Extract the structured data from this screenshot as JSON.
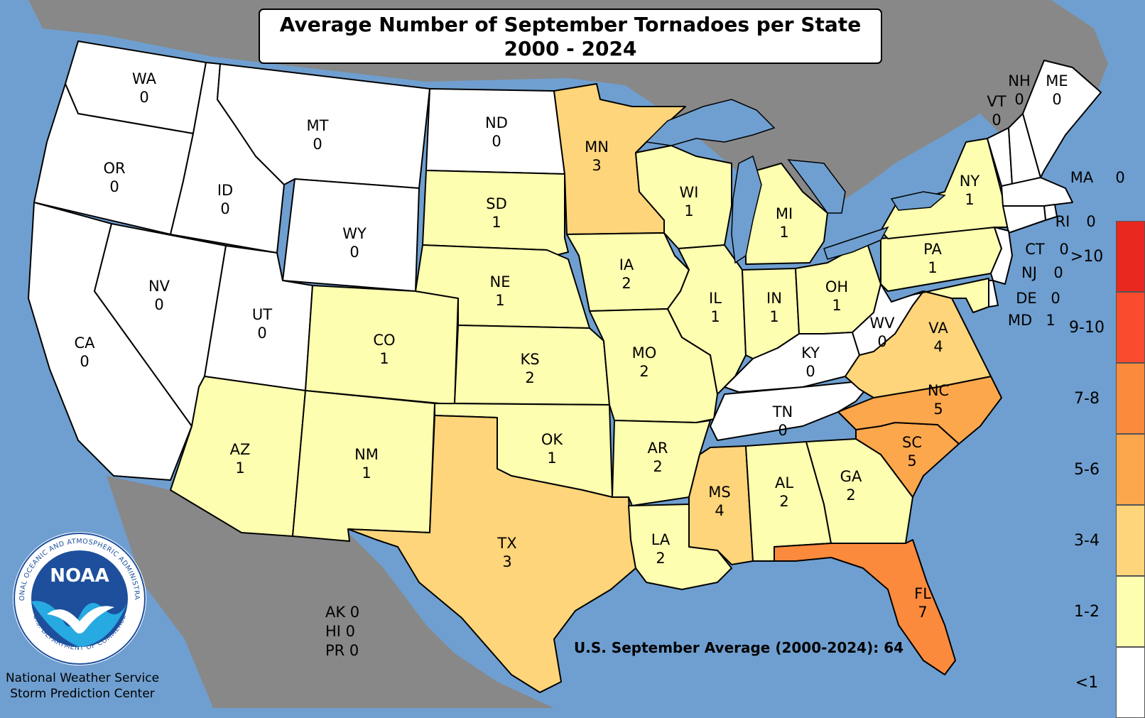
{
  "title": {
    "line1": "Average Number of September Tornadoes per State",
    "line2": "2000 - 2024"
  },
  "colors": {
    "ocean": "#6f9fd0",
    "land_outside": "#888888",
    "lakes": "#6f9fd0"
  },
  "legend": [
    {
      "label": ">10",
      "color": "#e8281e"
    },
    {
      "label": "9-10",
      "color": "#fb4b2e"
    },
    {
      "label": "7-8",
      "color": "#fc8a3d"
    },
    {
      "label": "5-6",
      "color": "#fda74c"
    },
    {
      "label": "3-4",
      "color": "#fed57a"
    },
    {
      "label": "1-2",
      "color": "#fefeb0"
    },
    {
      "label": "<1",
      "color": "#ffffff"
    }
  ],
  "states": {
    "WA": {
      "abbr": "WA",
      "value": "0",
      "fill": "#ffffff"
    },
    "OR": {
      "abbr": "OR",
      "value": "0",
      "fill": "#ffffff"
    },
    "CA": {
      "abbr": "CA",
      "value": "0",
      "fill": "#ffffff"
    },
    "ID": {
      "abbr": "ID",
      "value": "0",
      "fill": "#ffffff"
    },
    "NV": {
      "abbr": "NV",
      "value": "0",
      "fill": "#ffffff"
    },
    "MT": {
      "abbr": "MT",
      "value": "0",
      "fill": "#ffffff"
    },
    "WY": {
      "abbr": "WY",
      "value": "0",
      "fill": "#ffffff"
    },
    "UT": {
      "abbr": "UT",
      "value": "0",
      "fill": "#ffffff"
    },
    "AZ": {
      "abbr": "AZ",
      "value": "1",
      "fill": "#fefeb0"
    },
    "CO": {
      "abbr": "CO",
      "value": "1",
      "fill": "#fefeb0"
    },
    "NM": {
      "abbr": "NM",
      "value": "1",
      "fill": "#fefeb0"
    },
    "ND": {
      "abbr": "ND",
      "value": "0",
      "fill": "#ffffff"
    },
    "SD": {
      "abbr": "SD",
      "value": "1",
      "fill": "#fefeb0"
    },
    "NE": {
      "abbr": "NE",
      "value": "1",
      "fill": "#fefeb0"
    },
    "KS": {
      "abbr": "KS",
      "value": "2",
      "fill": "#fefeb0"
    },
    "OK": {
      "abbr": "OK",
      "value": "1",
      "fill": "#fefeb0"
    },
    "TX": {
      "abbr": "TX",
      "value": "3",
      "fill": "#fed57a"
    },
    "MN": {
      "abbr": "MN",
      "value": "3",
      "fill": "#fed57a"
    },
    "IA": {
      "abbr": "IA",
      "value": "2",
      "fill": "#fefeb0"
    },
    "MO": {
      "abbr": "MO",
      "value": "2",
      "fill": "#fefeb0"
    },
    "AR": {
      "abbr": "AR",
      "value": "2",
      "fill": "#fefeb0"
    },
    "LA": {
      "abbr": "LA",
      "value": "2",
      "fill": "#fefeb0"
    },
    "WI": {
      "abbr": "WI",
      "value": "1",
      "fill": "#fefeb0"
    },
    "IL": {
      "abbr": "IL",
      "value": "1",
      "fill": "#fefeb0"
    },
    "MI": {
      "abbr": "MI",
      "value": "1",
      "fill": "#fefeb0"
    },
    "IN": {
      "abbr": "IN",
      "value": "1",
      "fill": "#fefeb0"
    },
    "OH": {
      "abbr": "OH",
      "value": "1",
      "fill": "#fefeb0"
    },
    "KY": {
      "abbr": "KY",
      "value": "0",
      "fill": "#ffffff"
    },
    "TN": {
      "abbr": "TN",
      "value": "0",
      "fill": "#ffffff"
    },
    "MS": {
      "abbr": "MS",
      "value": "4",
      "fill": "#fed57a"
    },
    "AL": {
      "abbr": "AL",
      "value": "2",
      "fill": "#fefeb0"
    },
    "GA": {
      "abbr": "GA",
      "value": "2",
      "fill": "#fefeb0"
    },
    "FL": {
      "abbr": "FL",
      "value": "7",
      "fill": "#fc8a3d"
    },
    "SC": {
      "abbr": "SC",
      "value": "5",
      "fill": "#fda74c"
    },
    "NC": {
      "abbr": "NC",
      "value": "5",
      "fill": "#fda74c"
    },
    "VA": {
      "abbr": "VA",
      "value": "4",
      "fill": "#fed57a"
    },
    "WV": {
      "abbr": "WV",
      "value": "0",
      "fill": "#ffffff"
    },
    "PA": {
      "abbr": "PA",
      "value": "1",
      "fill": "#fefeb0"
    },
    "NY": {
      "abbr": "NY",
      "value": "1",
      "fill": "#fefeb0"
    },
    "VT": {
      "abbr": "VT",
      "value": "0",
      "fill": "#ffffff"
    },
    "NH": {
      "abbr": "NH",
      "value": "0",
      "fill": "#ffffff"
    },
    "ME": {
      "abbr": "ME",
      "value": "0",
      "fill": "#ffffff"
    },
    "MA": {
      "abbr": "MA",
      "value": "0",
      "fill": "#ffffff"
    },
    "RI": {
      "abbr": "RI",
      "value": "0",
      "fill": "#ffffff"
    },
    "CT": {
      "abbr": "CT",
      "value": "0",
      "fill": "#ffffff"
    },
    "NJ": {
      "abbr": "NJ",
      "value": "0",
      "fill": "#ffffff"
    },
    "DE": {
      "abbr": "DE",
      "value": "0",
      "fill": "#ffffff"
    },
    "MD": {
      "abbr": "MD",
      "value": "1",
      "fill": "#fefeb0"
    }
  },
  "outlying": [
    "AK 0",
    "HI 0",
    "PR 0"
  ],
  "national_average": "U.S. September Average (2000-2024): 64",
  "credit": {
    "line1": "National Weather Service",
    "line2": "Storm Prediction Center"
  },
  "logo": {
    "wordmark": "NOAA",
    "ring_text": "NATIONAL OCEANIC AND ATMOSPHERIC ADMINISTRATION",
    "ring_text_bottom": "U.S. DEPARTMENT OF COMMERCE"
  }
}
